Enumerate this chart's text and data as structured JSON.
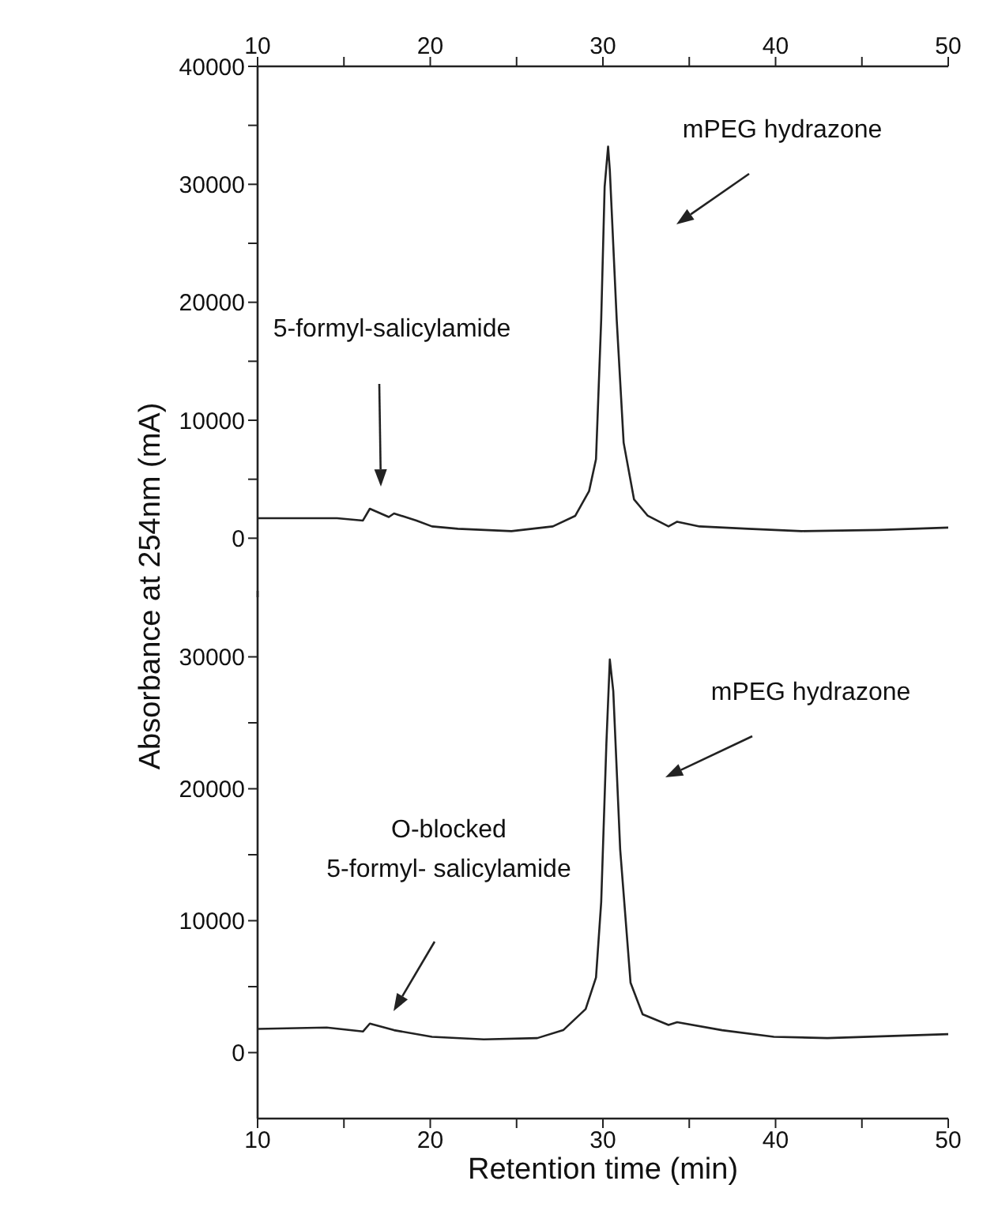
{
  "chart_data": [
    {
      "type": "line",
      "ylabel": "Absorbance at 254nm (mA)",
      "annotations": [
        "mPEG hydrazone",
        "5-formyl-salicylamide"
      ],
      "xlim": [
        10,
        50
      ],
      "xticks": [
        10,
        {
          "value": 15,
          "label": null
        },
        20,
        {
          "value": 25,
          "label": null
        },
        30,
        {
          "value": 35,
          "label": null
        },
        40,
        {
          "value": 45,
          "label": null
        },
        50
      ],
      "ylim": [
        -5000,
        40000
      ],
      "yticks": [
        0,
        {
          "value": 5000,
          "label": null
        },
        10000,
        {
          "value": 15000,
          "label": null
        },
        20000,
        {
          "value": 25000,
          "label": null
        },
        30000,
        {
          "value": 35000,
          "label": null
        },
        40000
      ],
      "series": [
        {
          "color": "#222222",
          "x": [
            10,
            14.6,
            16.1,
            16.5,
            17.6,
            17.9,
            19.2,
            20.1,
            21.6,
            24.7,
            27.1,
            28.4,
            29.2,
            29.6,
            29.9,
            30.1,
            30.3,
            30.4,
            30.8,
            31.2,
            31.8,
            32.6,
            33.8,
            34.3,
            35.6,
            38.4,
            41.5,
            46,
            50
          ],
          "values": [
            1700,
            1700,
            1500,
            2500,
            1800,
            2100,
            1500,
            1000,
            800,
            600,
            1000,
            1900,
            4000,
            6700,
            18500,
            29800,
            33200,
            31200,
            18500,
            8100,
            3300,
            1900,
            1000,
            1400,
            1000,
            800,
            600,
            700,
            900
          ]
        }
      ]
    },
    {
      "type": "line",
      "xlabel": "Retention time (min)",
      "annotations": [
        "mPEG hydrazone",
        "O-blocked\n5-formyl- salicylamide"
      ],
      "xlim": [
        10,
        50
      ],
      "xticks": [
        10,
        {
          "value": 15,
          "label": null
        },
        20,
        {
          "value": 25,
          "label": null
        },
        30,
        {
          "value": 35,
          "label": null
        },
        40,
        {
          "value": 45,
          "label": null
        },
        50
      ],
      "ylim": [
        -5000,
        35000
      ],
      "yticks": [
        0,
        {
          "value": 5000,
          "label": null
        },
        10000,
        {
          "value": 15000,
          "label": null
        },
        20000,
        {
          "value": 25000,
          "label": null
        },
        30000
      ],
      "series": [
        {
          "color": "#222222",
          "x": [
            10,
            14,
            16.1,
            16.5,
            17.9,
            20.1,
            23.1,
            26.2,
            27.7,
            29,
            29.6,
            29.9,
            30.2,
            30.4,
            30.6,
            31,
            31.6,
            32.3,
            33.8,
            34.3,
            36.9,
            39.9,
            43,
            50
          ],
          "values": [
            1800,
            1900,
            1600,
            2200,
            1700,
            1200,
            1000,
            1100,
            1700,
            3300,
            5700,
            11400,
            23400,
            29800,
            27400,
            15400,
            5300,
            2900,
            2100,
            2300,
            1700,
            1200,
            1100,
            1400
          ]
        }
      ]
    }
  ]
}
